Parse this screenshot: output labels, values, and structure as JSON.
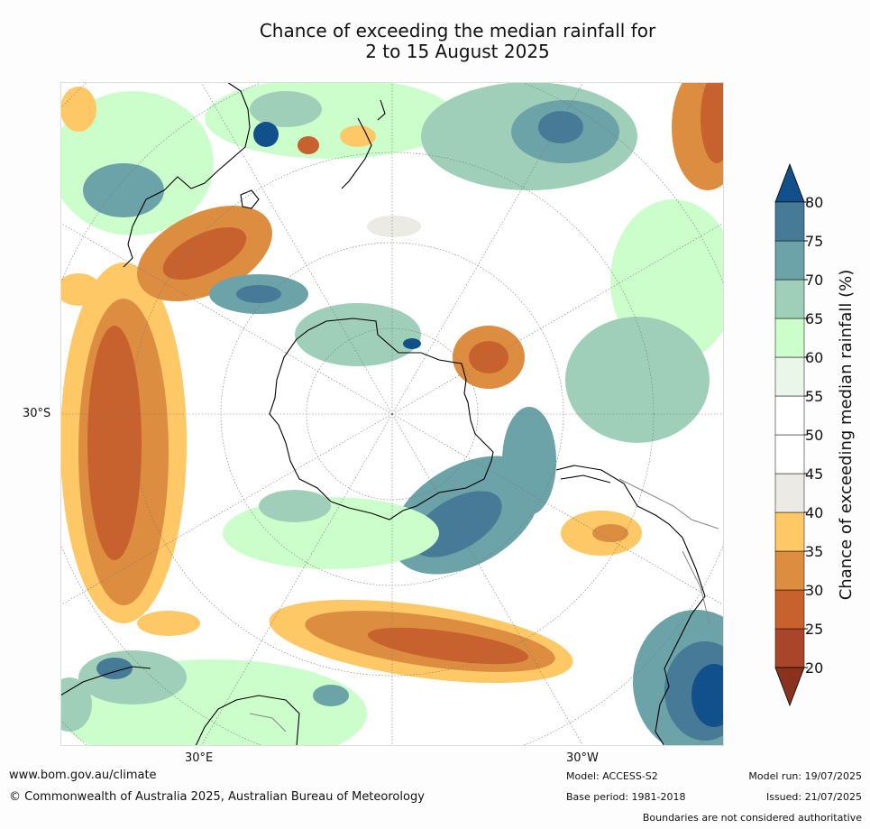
{
  "title_line1": "Chance of exceeding the median rainfall for",
  "title_line2": "2 to 15 August 2025",
  "lat_label": "30°S",
  "lon_labels": {
    "east": "30°E",
    "west": "30°W"
  },
  "colorbar": {
    "label": "Chance of exceeding median rainfall (%)",
    "ticks": [
      "20",
      "25",
      "30",
      "35",
      "40",
      "45",
      "50",
      "55",
      "60",
      "65",
      "70",
      "75",
      "80"
    ],
    "bins": [
      {
        "from": 20,
        "to": 25,
        "color": "#a9452a"
      },
      {
        "from": 25,
        "to": 30,
        "color": "#c7622e"
      },
      {
        "from": 30,
        "to": 35,
        "color": "#dd8d40"
      },
      {
        "from": 35,
        "to": 40,
        "color": "#fec866"
      },
      {
        "from": 40,
        "to": 45,
        "color": "#eceae5"
      },
      {
        "from": 45,
        "to": 50,
        "color": "#ffffff"
      },
      {
        "from": 50,
        "to": 55,
        "color": "#ffffff"
      },
      {
        "from": 55,
        "to": 60,
        "color": "#e9f6e9"
      },
      {
        "from": 60,
        "to": 65,
        "color": "#ccfecc"
      },
      {
        "from": 65,
        "to": 70,
        "color": "#9fcfb8"
      },
      {
        "from": 70,
        "to": 75,
        "color": "#6ba3a8"
      },
      {
        "from": 75,
        "to": 80,
        "color": "#467a97"
      }
    ],
    "extend_low_color": "#8b321e",
    "extend_high_color": "#11508a"
  },
  "footer": {
    "website": "www.bom.gov.au/climate",
    "copyright": "© Commonwealth of Australia 2025, Australian Bureau of Meteorology",
    "model": "Model: ACCESS-S2",
    "base_period": "Base period: 1981-2018",
    "model_run": "Model run: 19/07/2025",
    "issued": "Issued: 21/07/2025",
    "disclaimer": "Boundaries are not considered authoritative"
  }
}
